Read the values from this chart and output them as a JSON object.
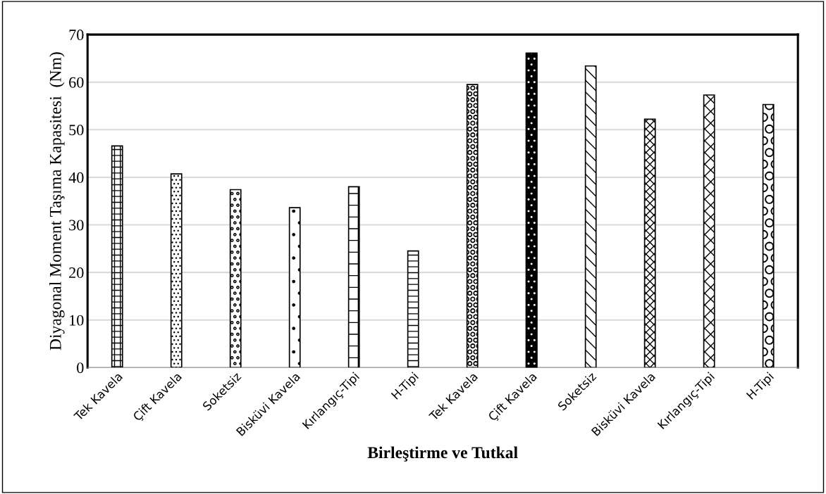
{
  "chart_data": {
    "type": "bar",
    "xlabel": "Birleştirme ve Tutkal",
    "ylabel": "Diyagonal Moment Taşıma Kapasitesi  (Nm)",
    "categories": [
      "Tek Kavela",
      "Çift Kavela",
      "Soketsiz",
      "Bisküvi Kavela",
      "Kırlangıç-Tipi",
      "H-Tipi",
      "Tek Kavela",
      "Çift Kavela",
      "Soketsiz",
      "Bisküvi Kavela",
      "Kırlangıç-Tipi",
      "H-Tipi"
    ],
    "values": [
      46.6,
      40.7,
      37.4,
      33.6,
      38.0,
      24.5,
      59.5,
      66.1,
      63.4,
      52.2,
      57.3,
      55.3
    ],
    "colors": [
      "#ffffff",
      "#ffffff",
      "#ffffff",
      "#ffffff",
      "#ffffff",
      "#ffffff",
      "#ffffff",
      "#000000",
      "#ffffff",
      "#ffffff",
      "#ffffff",
      "#ffffff"
    ],
    "ylim": [
      0,
      70
    ],
    "yticks": [
      0,
      10,
      20,
      30,
      40,
      50,
      60,
      70
    ],
    "grid": "y",
    "legend": false
  }
}
